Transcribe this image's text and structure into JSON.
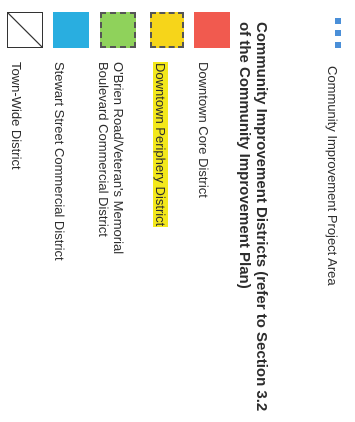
{
  "legend": {
    "project_area_label": "Community Improvement Project Area",
    "heading": "Community Improvement Districts (refer to Section 3.2 of the Community Improvement Plan)",
    "items": [
      {
        "label": "Downtown Core District",
        "color": "#f15a4f"
      },
      {
        "label": "Downtown Periphery District",
        "color": "#f6d51a"
      },
      {
        "label_line1": "O'Brien Road/Veteran's Memorial",
        "label_line2": "Boulevard Commercial District",
        "color": "#8fd25b"
      },
      {
        "label": "Stewart Street Commercial District",
        "color": "#29aee0"
      },
      {
        "label": "Town-Wide District",
        "color": "#ffffff"
      }
    ]
  }
}
